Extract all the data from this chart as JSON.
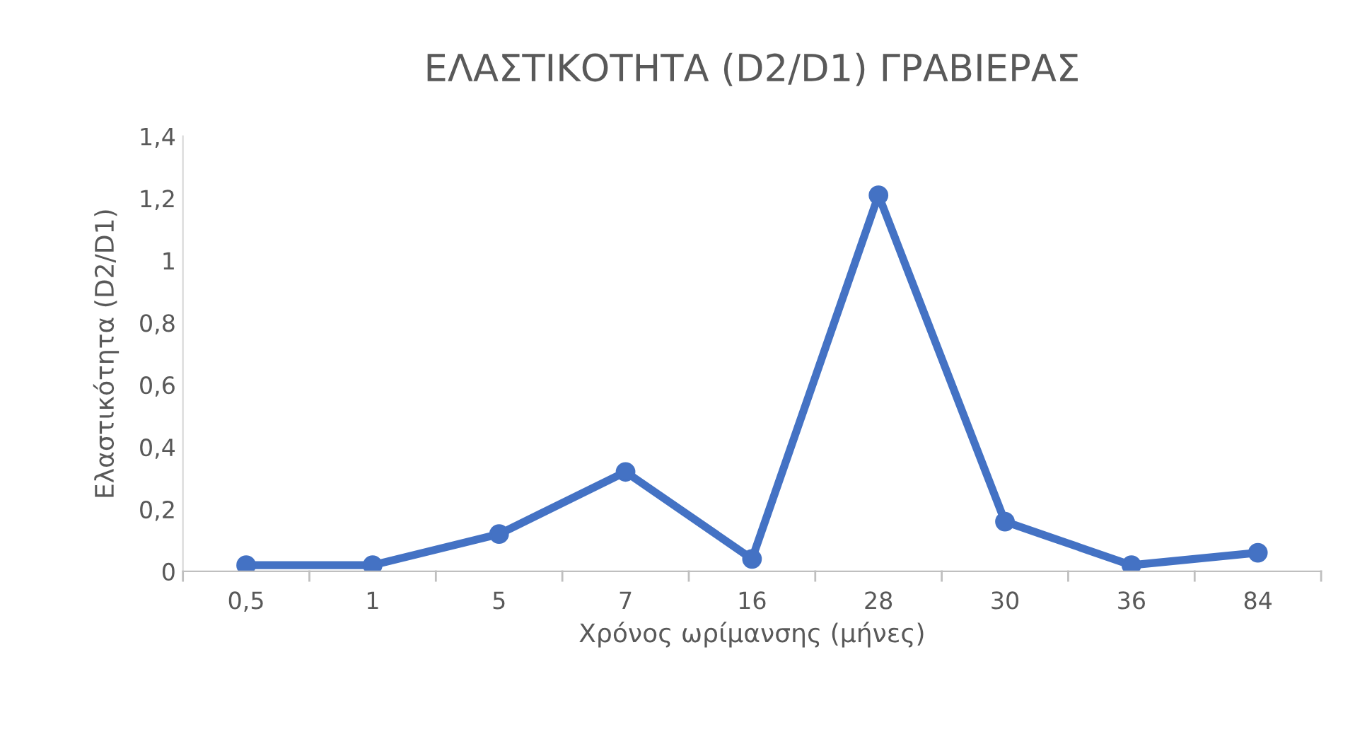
{
  "chart_data": {
    "type": "line",
    "title": "ΕΛΑΣΤΙΚΟΤΗΤΑ (D2/D1) ΓΡΑΒΙΕΡΑΣ",
    "xlabel": "Χρόνος ωρίμανσης (μήνες)",
    "ylabel": "Ελαστικότητα (D2/D1)",
    "categories": [
      "0,5",
      "1",
      "5",
      "7",
      "16",
      "28",
      "30",
      "36",
      "84"
    ],
    "series": [
      {
        "color": "#4472c4",
        "values": [
          0.02,
          0.02,
          0.12,
          0.32,
          0.04,
          1.21,
          0.16,
          0.02,
          0.06
        ]
      }
    ],
    "ylim": [
      0,
      1.4
    ],
    "yticks": [
      0,
      {
        "value": 0.2,
        "label": "0,2"
      },
      {
        "value": 0.4,
        "label": "0,4"
      },
      {
        "value": 0.6,
        "label": "0,6"
      },
      {
        "value": 0.8,
        "label": "0,8"
      },
      1,
      {
        "value": 1.2,
        "label": "1,2"
      },
      {
        "value": 1.4,
        "label": "1,4"
      }
    ],
    "grid": false,
    "marker": "circle",
    "line_style": "solid"
  }
}
